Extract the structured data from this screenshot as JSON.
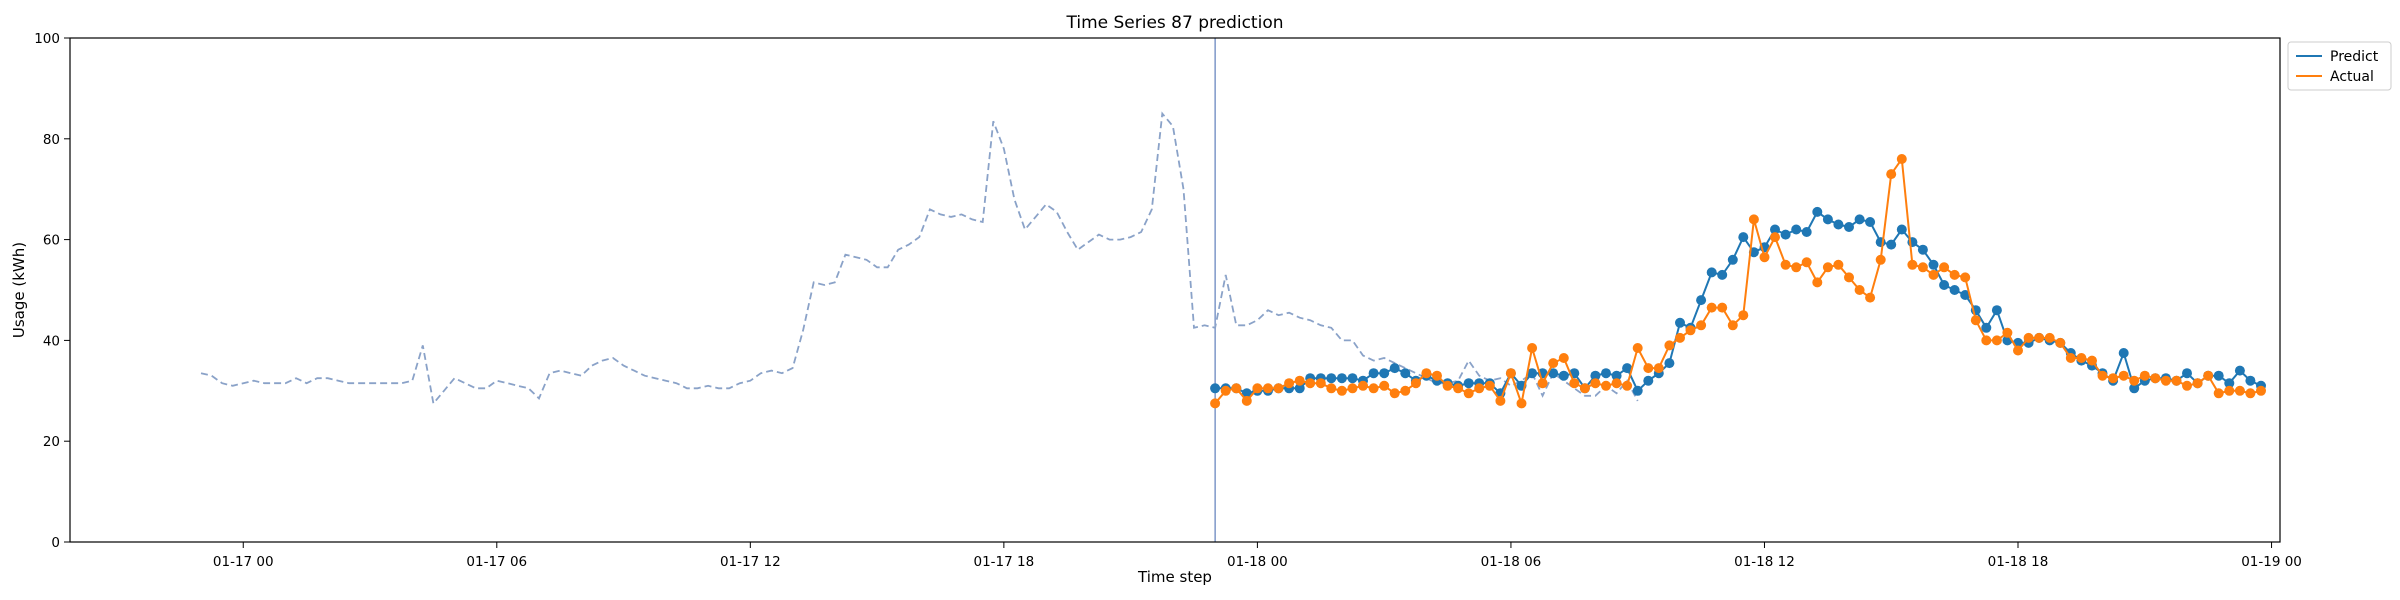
{
  "chart_data": {
    "type": "line",
    "title": "Time Series 87 prediction",
    "xlabel": "Time step",
    "ylabel": "Usage (kWh)",
    "ylim": [
      0,
      100
    ],
    "yticks": [
      0,
      20,
      40,
      60,
      80,
      100
    ],
    "xlim_hours": [
      -4.1,
      48.2
    ],
    "xticks": [
      {
        "hour": 0,
        "label": "01-17 00"
      },
      {
        "hour": 6,
        "label": "01-17 06"
      },
      {
        "hour": 12,
        "label": "01-17 12"
      },
      {
        "hour": 18,
        "label": "01-17 18"
      },
      {
        "hour": 24,
        "label": "01-18 00"
      },
      {
        "hour": 30,
        "label": "01-18 06"
      },
      {
        "hour": 36,
        "label": "01-18 12"
      },
      {
        "hour": 42,
        "label": "01-18 18"
      },
      {
        "hour": 48,
        "label": "01-19 00"
      }
    ],
    "forecast_start_hour": 23.0,
    "history": {
      "start_hour": -1.0,
      "step_hours": 0.25,
      "values": [
        33.5,
        33,
        31.5,
        31,
        31.5,
        32,
        31.5,
        31.5,
        31.5,
        32.5,
        31.5,
        32.5,
        32.5,
        32,
        31.5,
        31.5,
        31.5,
        31.5,
        31.5,
        31.5,
        32,
        39,
        27.5,
        30,
        32.5,
        31.5,
        30.5,
        30.5,
        32,
        31.5,
        31,
        30.5,
        28.5,
        33.5,
        34,
        33.5,
        33,
        35,
        36,
        36.5,
        35,
        34,
        33,
        32.5,
        32,
        31.5,
        30.5,
        30.5,
        31,
        30.5,
        30.5,
        31.5,
        32,
        33.5,
        34,
        33.5,
        34.5,
        42,
        51.5,
        51,
        51.5,
        57,
        56.5,
        56,
        54.5,
        54.5,
        58,
        59,
        60.5,
        66,
        65,
        64.5,
        65,
        64,
        63.5,
        83.5,
        78,
        68,
        62,
        64.5,
        67,
        65.5,
        61.5,
        58,
        59.5,
        61,
        60,
        60,
        60.5,
        61.5,
        66,
        85,
        82.5,
        70,
        42.5,
        43,
        42.5,
        53,
        43,
        43,
        44,
        46,
        45,
        45.5,
        44.5,
        44,
        43,
        42.5,
        40,
        40,
        37,
        36,
        36.5,
        35.5,
        34.5,
        33.5,
        32.5,
        31.5,
        31.5,
        32,
        36,
        33,
        32,
        32.5,
        31,
        32,
        33.5,
        29,
        33.5,
        32,
        30.5,
        29,
        29,
        31,
        29.5,
        32,
        28
      ]
    },
    "series": [
      {
        "name": "Predict",
        "color": "#1f77b4",
        "start_hour": 23.0,
        "step_hours": 0.25,
        "values": [
          30.5,
          30.5,
          30.5,
          29.5,
          30,
          30,
          30.5,
          30.5,
          30.5,
          32.5,
          32.5,
          32.5,
          32.5,
          32.5,
          32,
          33.5,
          33.5,
          34.5,
          33.5,
          32,
          33,
          32,
          31.5,
          31,
          31.5,
          31.5,
          31.5,
          29.5,
          33.5,
          31,
          33.5,
          33.5,
          33.5,
          33,
          33.5,
          30.5,
          33,
          33.5,
          33,
          34.5,
          30,
          32,
          33.5,
          35.5,
          43.5,
          42.5,
          48,
          53.5,
          53,
          56,
          60.5,
          57.5,
          58.5,
          62,
          61,
          62,
          61.5,
          65.5,
          64,
          63,
          62.5,
          64,
          63.5,
          59.5,
          59,
          62,
          59.5,
          58,
          55,
          51,
          50,
          49,
          46,
          42.5,
          46,
          40,
          39.5,
          39.5,
          40.5,
          40,
          39.5,
          37.5,
          36,
          35,
          33.5,
          32,
          37.5,
          30.5,
          32,
          32.5,
          32.5,
          32,
          33.5,
          31.5,
          33,
          33,
          31.5,
          34,
          32,
          31
        ]
      },
      {
        "name": "Actual",
        "color": "#ff7f0e",
        "start_hour": 23.0,
        "step_hours": 0.25,
        "values": [
          27.5,
          30,
          30.5,
          28,
          30.5,
          30.5,
          30.5,
          31.5,
          32,
          31.5,
          31.5,
          30.5,
          30,
          30.5,
          31,
          30.5,
          31,
          29.5,
          30,
          31.5,
          33.5,
          33,
          31,
          30.5,
          29.5,
          30.5,
          31,
          28,
          33.5,
          27.5,
          38.5,
          31.5,
          35.5,
          36.5,
          31.5,
          30.5,
          31.5,
          31,
          31.5,
          31,
          38.5,
          34.5,
          34.5,
          39,
          40.5,
          42,
          43,
          46.5,
          46.5,
          43,
          45,
          64,
          56.5,
          60.5,
          55,
          54.5,
          55.5,
          51.5,
          54.5,
          55,
          52.5,
          50,
          48.5,
          56,
          73,
          76,
          55,
          54.5,
          53,
          54.5,
          53,
          52.5,
          44,
          40,
          40,
          41.5,
          38,
          40.5,
          40.5,
          40.5,
          39.5,
          36.5,
          36.5,
          36,
          33,
          32.5,
          33,
          32,
          33,
          32.5,
          32,
          32,
          31,
          31.5,
          33,
          29.5,
          30,
          30,
          29.5,
          30
        ]
      }
    ],
    "legend": {
      "location": "upper right outside",
      "entries": [
        "Predict",
        "Actual"
      ]
    }
  }
}
